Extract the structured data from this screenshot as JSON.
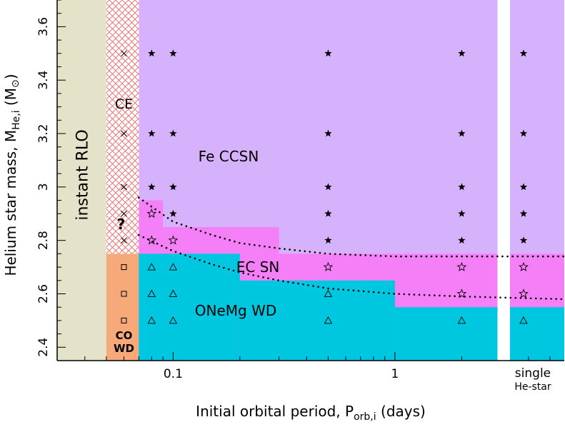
{
  "chart_data": {
    "type": "scatter",
    "xlabel_main": "Initial orbital period,",
    "xlabel_sym": "P",
    "xlabel_sub": "orb,i",
    "xlabel_unit": "(days)",
    "ylabel_main": "Helium star mass,",
    "ylabel_sym": "M",
    "ylabel_sub": "He,i",
    "ylabel_unit_open": "(M",
    "ylabel_unit_close": ")",
    "xscale": "log",
    "xlim": [
      0.03,
      5.8
    ],
    "ylim": [
      2.35,
      3.7
    ],
    "x_tick_labels": [
      {
        "x": 0.1,
        "label": "0.1"
      },
      {
        "x": 1,
        "label": "1"
      }
    ],
    "y_tick_labels": [
      {
        "y": 2.4,
        "label": "2.4"
      },
      {
        "y": 2.6,
        "label": "2.6"
      },
      {
        "y": 2.8,
        "label": "2.8"
      },
      {
        "y": 3,
        "label": "3"
      },
      {
        "y": 3.2,
        "label": "3.2"
      },
      {
        "y": 3.4,
        "label": "3.4"
      },
      {
        "y": 3.6,
        "label": "3.6"
      }
    ],
    "single_label": "single",
    "single_label2": "He-star",
    "regions": [
      {
        "label": "instant RLO",
        "color": "#e4e2c8",
        "x_range": [
          0.03,
          0.05
        ],
        "y_range": [
          2.35,
          3.7
        ]
      },
      {
        "label": "CE",
        "color": "#ffffff",
        "hatch": "#e88888",
        "x_range": [
          0.05,
          0.07
        ],
        "y_range": [
          2.75,
          3.7
        ]
      },
      {
        "label": "CO WD",
        "color": "#f8a97a",
        "x_range": [
          0.05,
          0.07
        ],
        "y_range": [
          2.35,
          2.75
        ]
      },
      {
        "label": "Fe CCSN",
        "color": "#d7b2fc"
      },
      {
        "label": "EC SN",
        "color": "#f57ff7"
      },
      {
        "label": "ONeMg WD",
        "color": "#00c7e0"
      }
    ],
    "region_labels": {
      "instant_rlo": "instant RLO",
      "ce": "CE",
      "co": "CO",
      "wd": "WD",
      "fe": "Fe CCSN",
      "ec": "EC SN",
      "onemg": "ONeMg WD",
      "question": "?"
    },
    "ec_region_steps": [
      {
        "x_range": [
          0.07,
          0.09
        ],
        "y_top": 2.95
      },
      {
        "x_range": [
          0.09,
          0.3
        ],
        "y_top": 2.85
      },
      {
        "x_range": [
          0.3,
          2.9
        ],
        "y_top": 2.75
      },
      {
        "x_range": [
          3.3,
          5.8
        ],
        "y_top": 2.75
      }
    ],
    "onemg_region_steps": [
      {
        "x_range": [
          0.07,
          0.2
        ],
        "y_top": 2.75
      },
      {
        "x_range": [
          0.2,
          1.0
        ],
        "y_top": 2.65
      },
      {
        "x_range": [
          1.0,
          2.9
        ],
        "y_top": 2.55
      },
      {
        "x_range": [
          3.3,
          5.8
        ],
        "y_top": 2.55
      }
    ],
    "single_star_x": 3.8,
    "series": [
      {
        "marker": "cross",
        "points": [
          [
            0.06,
            3.5
          ],
          [
            0.06,
            3.2
          ],
          [
            0.06,
            3.0
          ],
          [
            0.06,
            2.9
          ],
          [
            0.06,
            2.8
          ]
        ]
      },
      {
        "marker": "square",
        "points": [
          [
            0.06,
            2.7
          ],
          [
            0.06,
            2.6
          ],
          [
            0.06,
            2.5
          ]
        ]
      },
      {
        "marker": "filled-star",
        "points": [
          [
            0.08,
            3.5
          ],
          [
            0.1,
            3.5
          ],
          [
            0.5,
            3.5
          ],
          [
            2.0,
            3.5
          ],
          [
            3.8,
            3.5
          ],
          [
            0.08,
            3.2
          ],
          [
            0.1,
            3.2
          ],
          [
            0.5,
            3.2
          ],
          [
            2.0,
            3.2
          ],
          [
            3.8,
            3.2
          ],
          [
            0.08,
            3.0
          ],
          [
            0.1,
            3.0
          ],
          [
            0.5,
            3.0
          ],
          [
            2.0,
            3.0
          ],
          [
            3.8,
            3.0
          ],
          [
            0.1,
            2.9
          ],
          [
            0.5,
            2.9
          ],
          [
            2.0,
            2.9
          ],
          [
            3.8,
            2.9
          ],
          [
            0.5,
            2.8
          ],
          [
            2.0,
            2.8
          ],
          [
            3.8,
            2.8
          ]
        ]
      },
      {
        "marker": "open-star",
        "points": [
          [
            0.08,
            2.9
          ],
          [
            0.08,
            2.8
          ],
          [
            0.1,
            2.8
          ],
          [
            0.5,
            2.7
          ],
          [
            2.0,
            2.7
          ],
          [
            3.8,
            2.7
          ],
          [
            2.0,
            2.6
          ],
          [
            3.8,
            2.6
          ]
        ]
      },
      {
        "marker": "triangle",
        "points": [
          [
            0.08,
            2.7
          ],
          [
            0.1,
            2.7
          ],
          [
            0.08,
            2.6
          ],
          [
            0.1,
            2.6
          ],
          [
            0.5,
            2.6
          ],
          [
            0.08,
            2.5
          ],
          [
            0.1,
            2.5
          ],
          [
            0.5,
            2.5
          ],
          [
            2.0,
            2.5
          ],
          [
            3.8,
            2.5
          ]
        ]
      }
    ],
    "dotted_curves": [
      {
        "points": [
          [
            0.07,
            2.96
          ],
          [
            0.1,
            2.87
          ],
          [
            0.15,
            2.82
          ],
          [
            0.2,
            2.79
          ],
          [
            0.3,
            2.77
          ],
          [
            0.5,
            2.75
          ],
          [
            1.0,
            2.74
          ],
          [
            2.0,
            2.74
          ],
          [
            5.8,
            2.74
          ]
        ]
      },
      {
        "points": [
          [
            0.07,
            2.82
          ],
          [
            0.1,
            2.76
          ],
          [
            0.15,
            2.71
          ],
          [
            0.2,
            2.68
          ],
          [
            0.3,
            2.65
          ],
          [
            0.5,
            2.62
          ],
          [
            1.0,
            2.6
          ],
          [
            2.0,
            2.59
          ],
          [
            5.8,
            2.58
          ]
        ]
      }
    ],
    "gap_x_range": [
      2.9,
      3.3
    ]
  }
}
